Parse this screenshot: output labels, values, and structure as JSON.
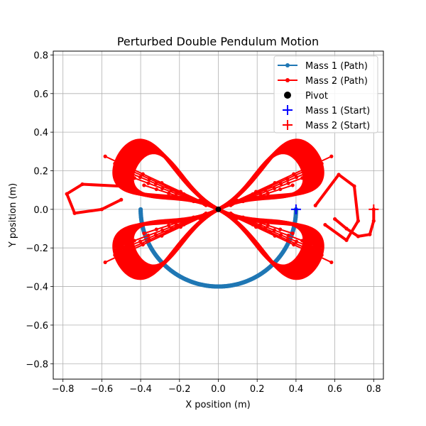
{
  "chart_data": {
    "type": "line",
    "title": "Perturbed Double Pendulum Motion",
    "xlabel": "X position (m)",
    "ylabel": "Y position (m)",
    "xlim": [
      -0.85,
      0.85
    ],
    "ylim": [
      -0.88,
      0.82
    ],
    "xticks": [
      -0.8,
      -0.6,
      -0.4,
      -0.2,
      0.0,
      0.2,
      0.4,
      0.6,
      0.8
    ],
    "yticks": [
      -0.8,
      -0.6,
      -0.4,
      -0.2,
      0.0,
      0.2,
      0.4,
      0.6,
      0.8
    ],
    "xtick_labels": [
      "−0.8",
      "−0.6",
      "−0.4",
      "−0.2",
      "0.0",
      "0.2",
      "0.4",
      "0.6",
      "0.8"
    ],
    "ytick_labels": [
      "−0.8",
      "−0.6",
      "−0.4",
      "−0.2",
      "0.0",
      "0.2",
      "0.4",
      "0.6",
      "0.8"
    ],
    "grid": true,
    "legend_position": "top-right",
    "series": [
      {
        "name": "Mass 1 (Path)",
        "kind": "line-dots",
        "color": "#1f77b4",
        "arc": {
          "radius": 0.4,
          "angle_range_deg": [
            -90,
            90
          ]
        }
      },
      {
        "name": "Mass 2 (Path)",
        "kind": "line-dots",
        "color": "#ff0000",
        "lobes": [
          {
            "center": [
              0.45,
              0.24
            ]
          },
          {
            "center": [
              -0.45,
              0.24
            ]
          },
          {
            "center": [
              0.45,
              -0.24
            ]
          },
          {
            "center": [
              -0.45,
              -0.24
            ]
          }
        ],
        "excursions": [
          {
            "x": [
              -0.5,
              -0.7,
              -0.78,
              -0.74,
              -0.6,
              -0.5
            ],
            "y": [
              0.12,
              0.13,
              0.08,
              -0.02,
              0.0,
              0.05
            ]
          },
          {
            "x": [
              0.5,
              0.62,
              0.7,
              0.72,
              0.66,
              0.55
            ],
            "y": [
              0.02,
              0.18,
              0.12,
              -0.06,
              -0.16,
              -0.08
            ]
          },
          {
            "x": [
              0.8,
              0.8,
              0.78,
              0.72,
              0.66,
              0.6
            ],
            "y": [
              0.0,
              -0.06,
              -0.13,
              -0.14,
              -0.1,
              -0.05
            ]
          }
        ]
      },
      {
        "name": "Pivot",
        "kind": "marker",
        "color": "#000000",
        "x": 0.0,
        "y": 0.0
      },
      {
        "name": "Mass 1 (Start)",
        "kind": "plus",
        "color": "#0000ff",
        "x": 0.4,
        "y": 0.0
      },
      {
        "name": "Mass 2 (Start)",
        "kind": "plus",
        "color": "#ff0000",
        "x": 0.8,
        "y": 0.0
      }
    ]
  }
}
